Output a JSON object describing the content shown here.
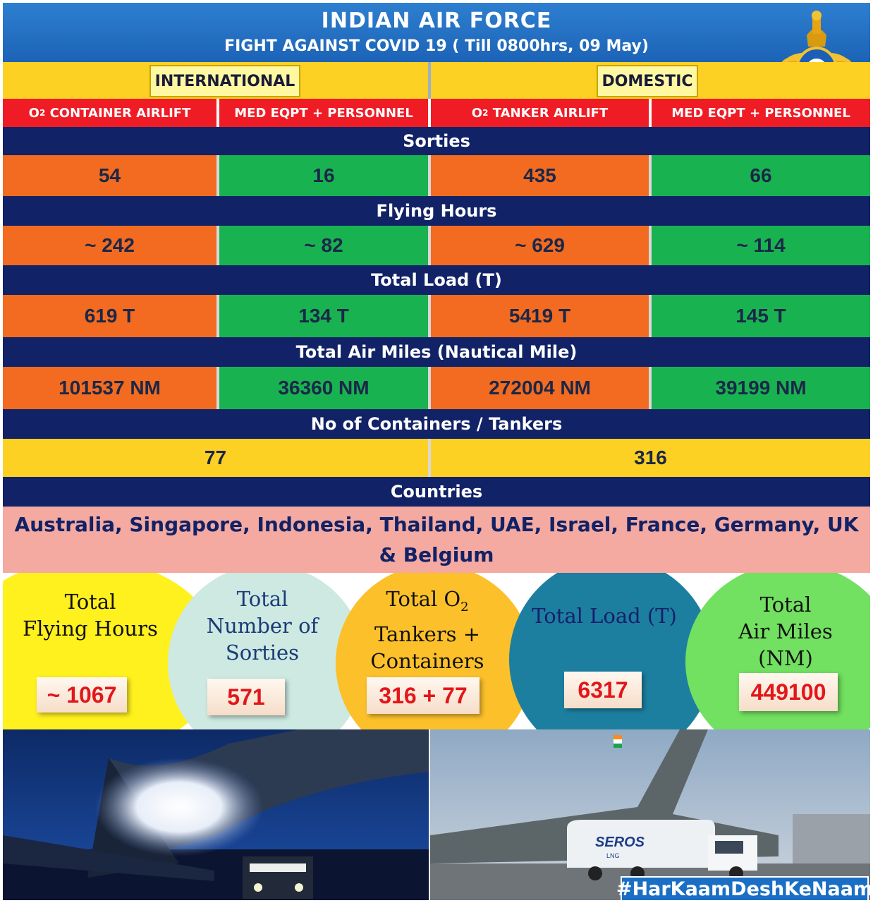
{
  "header": {
    "title": "INDIAN AIR FORCE",
    "subtitle": "FIGHT AGAINST COVID 19 ( Till 0800hrs, 09 May)"
  },
  "categories": {
    "international": "INTERNATIONAL",
    "domestic": "DOMESTIC"
  },
  "columns": [
    {
      "main": "O",
      "sub": "2",
      "rest": " CONTAINER AIRLIFT"
    },
    {
      "main": "MED EQPT + PERSONNEL",
      "sub": "",
      "rest": ""
    },
    {
      "main": "O",
      "sub": "2",
      "rest": " TANKER AIRLIFT"
    },
    {
      "main": "MED EQPT + PERSONNEL",
      "sub": "",
      "rest": ""
    }
  ],
  "sections": {
    "sorties": {
      "label": "Sorties",
      "values": [
        "54",
        "16",
        "435",
        "66"
      ]
    },
    "flying_hours": {
      "label": "Flying Hours",
      "values": [
        "~ 242",
        "~ 82",
        "~ 629",
        "~ 114"
      ]
    },
    "total_load": {
      "label": "Total Load (T)",
      "values": [
        "619 T",
        "134 T",
        "5419 T",
        "145 T"
      ]
    },
    "air_miles": {
      "label": "Total Air Miles (Nautical Mile)",
      "values": [
        "101537 NM",
        "36360 NM",
        "272004 NM",
        "39199 NM"
      ]
    },
    "containers": {
      "label": "No of Containers / Tankers",
      "values": [
        "77",
        "316"
      ]
    }
  },
  "countries": {
    "label": "Countries",
    "list": "Australia, Singapore, Indonesia, Thailand, UAE, Israel, France,  Germany, UK & Belgium"
  },
  "totals": {
    "flying_hours": {
      "line1": "Total",
      "line2": "Flying Hours",
      "value": "~ 1067"
    },
    "sorties": {
      "line1": "Total",
      "line2": "Number of",
      "line3": "Sorties",
      "value": "571"
    },
    "tankers": {
      "line1a": "Total O",
      "line1sub": "2",
      "line2": "Tankers +",
      "line3": "Containers",
      "value": "316 + 77"
    },
    "load": {
      "line1": "Total Load (T)",
      "value": "6317"
    },
    "air_miles": {
      "line1": "Total",
      "line2": "Air Miles (NM)",
      "value": "449100"
    }
  },
  "hashtag": "#HarKaamDeshKeNaam",
  "photo_texts": {
    "truck_brand": "SEROS",
    "truck_sub": "LNG"
  },
  "colors": {
    "header_blue": "#1c63b6",
    "band_navy": "#112266",
    "orange": "#f26b20",
    "green": "#19b251",
    "yellow": "#fdd124",
    "red": "#ef1c26",
    "countries_pink": "#f4a9a1"
  }
}
